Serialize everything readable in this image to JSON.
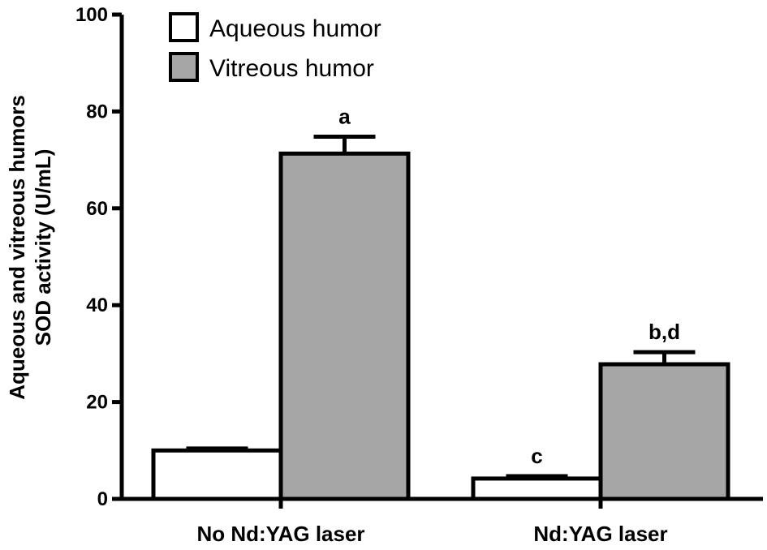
{
  "chart_data": {
    "type": "bar",
    "title": "",
    "xlabel": "",
    "ylabel_lines": [
      "Aqueous and vitreous humors",
      "SOD activity (U/mL)"
    ],
    "ylim": [
      0,
      100
    ],
    "yticks": [
      0,
      20,
      40,
      60,
      80,
      100
    ],
    "categories": [
      "No Nd:YAG laser",
      "Nd:YAG laser"
    ],
    "series": [
      {
        "name": "Aqueous humor",
        "color": "#ffffff",
        "values": [
          10,
          4.2
        ],
        "errors": [
          0.4,
          0.5
        ],
        "annotations": [
          "",
          "c"
        ]
      },
      {
        "name": "Vitreous humor",
        "color": "#a6a6a6",
        "values": [
          71.3,
          27.8
        ],
        "errors": [
          3.5,
          2.5
        ],
        "annotations": [
          "a",
          "b,d"
        ]
      }
    ],
    "legend": "top-left"
  }
}
